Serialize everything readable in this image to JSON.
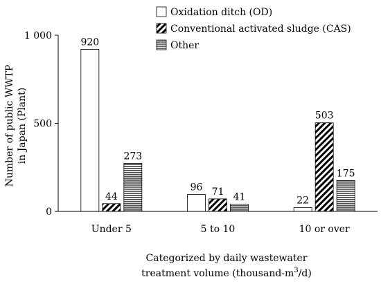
{
  "chart_data": {
    "type": "bar",
    "title": "",
    "categories": [
      "Under 5",
      "5 to 10",
      "10 or over"
    ],
    "series": [
      {
        "name": "Oxidation ditch (OD)",
        "values": [
          920,
          96,
          22
        ],
        "pattern": "white"
      },
      {
        "name": "Conventional activated sludge (CAS)",
        "values": [
          44,
          71,
          503
        ],
        "pattern": "diagonal-hatch"
      },
      {
        "name": "Other",
        "values": [
          273,
          41,
          175
        ],
        "pattern": "horizontal-stripes"
      }
    ],
    "ylim": [
      0,
      1000
    ],
    "yticks": [
      0,
      500,
      1000
    ],
    "ytick_labels": [
      "0",
      "500",
      "1 000"
    ],
    "ylabel_lines": [
      "Number of public  WWTP",
      "in Japan (Plant)"
    ],
    "xlabel_lines": [
      "Categorized by daily wastewater",
      "treatment volume (thousand-m",
      "3",
      "/d)"
    ],
    "grid": false,
    "legend_position": "top-right",
    "colors": {
      "stripe": "#555555",
      "border": "#000000",
      "axis": "#000000"
    }
  }
}
